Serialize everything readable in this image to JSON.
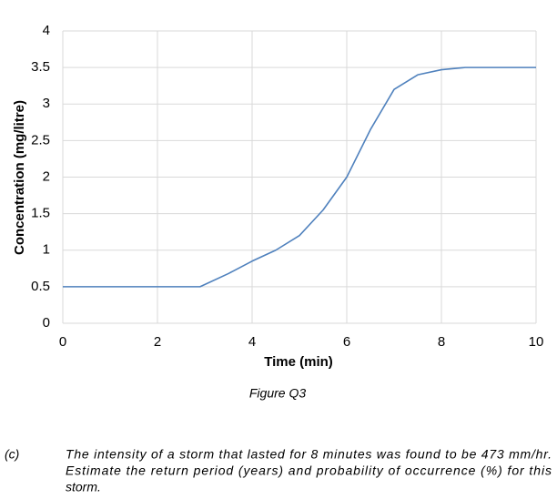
{
  "chart_data": {
    "type": "line",
    "x": [
      0,
      1,
      2,
      2.9,
      3.5,
      4,
      4.5,
      5,
      5.5,
      6,
      6.5,
      7,
      7.5,
      8,
      8.5,
      9,
      10
    ],
    "series": [
      {
        "name": "Concentration",
        "color": "#4f81bd",
        "values": [
          0.5,
          0.5,
          0.5,
          0.5,
          0.68,
          0.85,
          1.0,
          1.2,
          1.55,
          2.0,
          2.65,
          3.2,
          3.4,
          3.47,
          3.5,
          3.5,
          3.5
        ]
      }
    ],
    "xlabel": "Time (min)",
    "ylabel": "Concentration (mg/litre)",
    "xlim": [
      0,
      10
    ],
    "xticks": [
      0,
      2,
      4,
      6,
      8,
      10
    ],
    "ylim": [
      0,
      4
    ],
    "yticks": [
      0,
      0.5,
      1,
      1.5,
      2,
      2.5,
      3,
      3.5,
      4
    ],
    "grid": true
  },
  "figure_caption": "Figure Q3",
  "question": {
    "label": "(c)",
    "lines": [
      "The intensity of a storm that lasted for 8 minutes was found to be 473 mm/hr.",
      "Estimate the return period (years) and probability of occurrence (%) for this",
      "storm."
    ]
  }
}
